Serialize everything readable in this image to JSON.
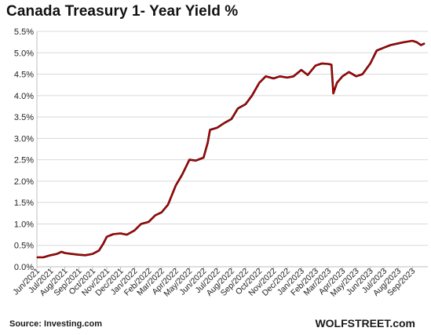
{
  "chart_data": {
    "type": "line",
    "title": "Canada Treasury 1- Year Yield %",
    "xlabel": "",
    "ylabel": "",
    "ylim": [
      0,
      5.5
    ],
    "yticks": [
      "0.0%",
      "0.5%",
      "1.0%",
      "1.5%",
      "2.0%",
      "2.5%",
      "3.0%",
      "3.5%",
      "4.0%",
      "4.5%",
      "5.0%",
      "5.5%"
    ],
    "xticks": [
      "Jun/2021",
      "Jul/2021",
      "Aug/2021",
      "Sep/2021",
      "Oct/2021",
      "Nov/2021",
      "Dec/2021",
      "Jan/2022",
      "Feb/2022",
      "Mar/2022",
      "Apr/2022",
      "May/2022",
      "Jun/2022",
      "Jul/2022",
      "Aug/2022",
      "Sep/2022",
      "Oct/2022",
      "Nov/2022",
      "Dec/2022",
      "Jan/2023",
      "Feb/2023",
      "Mar/2023",
      "Apr/2023",
      "May/2023",
      "Jun/2023",
      "Jul/2023",
      "Aug/2023",
      "Sep/2023"
    ],
    "grid": true,
    "series": [
      {
        "color": "#cc0000",
        "x": [
          "2021-06-01",
          "2021-06-15",
          "2021-07-01",
          "2021-07-15",
          "2021-07-25",
          "2021-08-01",
          "2021-08-15",
          "2021-09-01",
          "2021-09-15",
          "2021-10-01",
          "2021-10-15",
          "2021-10-25",
          "2021-11-01",
          "2021-11-15",
          "2021-12-01",
          "2021-12-15",
          "2022-01-01",
          "2022-01-15",
          "2022-02-01",
          "2022-02-15",
          "2022-03-01",
          "2022-03-15",
          "2022-04-01",
          "2022-04-15",
          "2022-05-01",
          "2022-05-15",
          "2022-06-01",
          "2022-06-10",
          "2022-06-15",
          "2022-07-01",
          "2022-07-15",
          "2022-08-01",
          "2022-08-15",
          "2022-09-01",
          "2022-09-15",
          "2022-10-01",
          "2022-10-15",
          "2022-11-01",
          "2022-11-15",
          "2022-12-01",
          "2022-12-15",
          "2023-01-01",
          "2023-01-15",
          "2023-02-01",
          "2023-02-15",
          "2023-03-01",
          "2023-03-08",
          "2023-03-12",
          "2023-03-20",
          "2023-04-01",
          "2023-04-15",
          "2023-05-01",
          "2023-05-15",
          "2023-06-01",
          "2023-06-15",
          "2023-07-01",
          "2023-07-15",
          "2023-08-01",
          "2023-08-15",
          "2023-09-01",
          "2023-09-10",
          "2023-09-20",
          "2023-09-28"
        ],
        "values": [
          0.22,
          0.22,
          0.27,
          0.3,
          0.35,
          0.32,
          0.3,
          0.28,
          0.27,
          0.3,
          0.38,
          0.55,
          0.7,
          0.76,
          0.78,
          0.75,
          0.85,
          1.0,
          1.05,
          1.2,
          1.27,
          1.45,
          1.9,
          2.15,
          2.5,
          2.48,
          2.55,
          2.9,
          3.2,
          3.25,
          3.35,
          3.45,
          3.7,
          3.8,
          4.0,
          4.3,
          4.45,
          4.4,
          4.45,
          4.42,
          4.45,
          4.6,
          4.48,
          4.7,
          4.75,
          4.74,
          4.72,
          4.05,
          4.3,
          4.45,
          4.55,
          4.45,
          4.5,
          4.75,
          5.05,
          5.12,
          5.18,
          5.22,
          5.25,
          5.28,
          5.25,
          5.18,
          5.22
        ]
      }
    ]
  },
  "footer": {
    "source": "Source: Investing.com",
    "brand": "WOLFSTREET.com"
  }
}
